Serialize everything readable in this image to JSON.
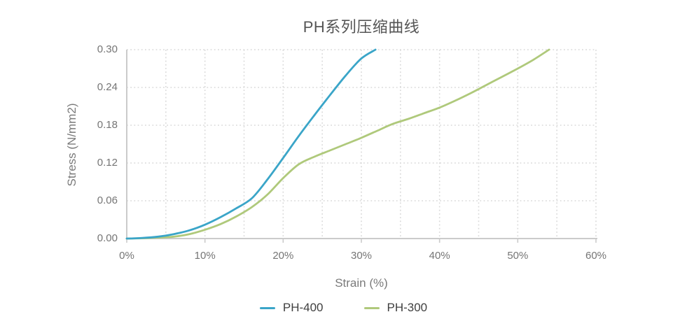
{
  "palette": {
    "background": "#FFFFFF",
    "grid": "#D9D9D9",
    "axis": "#CBCBCB",
    "tick_text": "#757575",
    "axis_title_text": "#7A7A7A",
    "chart_title_text": "#555555",
    "legend_text": "#3F3F3F",
    "ph400_line": "#3AA5C8",
    "ph300_line": "#AFC97B"
  },
  "chart_data": {
    "type": "line",
    "title": "PH系列压缩曲线",
    "xlabel": "Strain (%)",
    "ylabel": "Stress (N/mm2)",
    "xlim": [
      0,
      60
    ],
    "ylim": [
      0,
      0.3
    ],
    "grid": true,
    "grid_style": "dotted",
    "x_minor_grid_step_percent": 5,
    "legend_position": "bottom",
    "x_ticks": [
      {
        "v": 0,
        "label": "0%"
      },
      {
        "v": 10,
        "label": "10%"
      },
      {
        "v": 20,
        "label": "20%"
      },
      {
        "v": 30,
        "label": "30%"
      },
      {
        "v": 40,
        "label": "40%"
      },
      {
        "v": 50,
        "label": "50%"
      },
      {
        "v": 60,
        "label": "60%"
      }
    ],
    "y_ticks": [
      {
        "v": 0.0,
        "label": "0.00"
      },
      {
        "v": 0.06,
        "label": "0.06"
      },
      {
        "v": 0.12,
        "label": "0.12"
      },
      {
        "v": 0.18,
        "label": "0.18"
      },
      {
        "v": 0.24,
        "label": "0.24"
      },
      {
        "v": 0.3,
        "label": "0.30"
      }
    ],
    "series": [
      {
        "name": "PH-300",
        "color": "#AFC97B",
        "x": [
          0,
          2,
          4,
          6,
          8,
          10,
          12,
          14,
          16,
          18,
          20,
          22,
          24,
          26,
          28,
          30,
          32,
          34,
          36,
          38,
          40,
          42,
          44,
          46,
          48,
          50,
          52,
          54
        ],
        "y": [
          0,
          0.0005,
          0.0015,
          0.003,
          0.007,
          0.014,
          0.023,
          0.035,
          0.05,
          0.07,
          0.096,
          0.118,
          0.13,
          0.14,
          0.15,
          0.16,
          0.171,
          0.182,
          0.19,
          0.199,
          0.208,
          0.219,
          0.231,
          0.244,
          0.257,
          0.27,
          0.284,
          0.3
        ]
      },
      {
        "name": "PH-400",
        "color": "#3AA5C8",
        "x": [
          0,
          2,
          4,
          6,
          8,
          10,
          12,
          14,
          16,
          18,
          20,
          22,
          24,
          26,
          28,
          30,
          31.8
        ],
        "y": [
          0,
          0.001,
          0.003,
          0.007,
          0.013,
          0.022,
          0.034,
          0.048,
          0.064,
          0.094,
          0.128,
          0.163,
          0.196,
          0.228,
          0.259,
          0.286,
          0.3
        ]
      }
    ],
    "legend_order": [
      "PH-400",
      "PH-300"
    ]
  }
}
